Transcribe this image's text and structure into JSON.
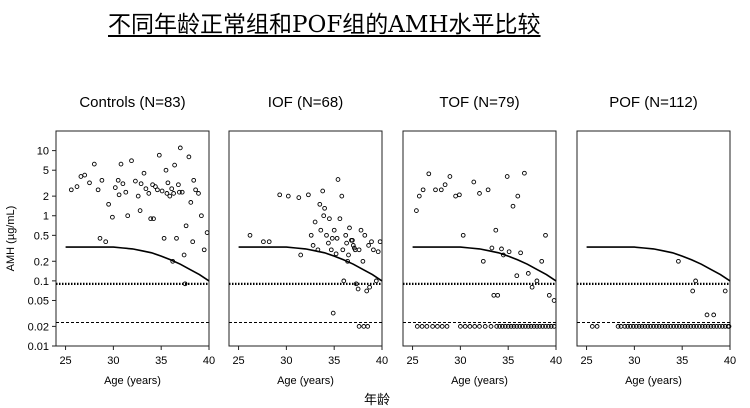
{
  "title": "不同年龄正常组和POF组的AMH水平比较",
  "footer_label": "年龄",
  "chart_data": {
    "type": "scatter",
    "ylabel": "AMH (µg/mL)",
    "xlabel": "Age (years)",
    "x_range": [
      24,
      40
    ],
    "y_range": [
      0.01,
      20
    ],
    "y_scale": "log",
    "x_ticks": [
      25,
      30,
      35,
      40
    ],
    "y_ticks": [
      {
        "value": 10,
        "label": "10"
      },
      {
        "value": 5,
        "label": "5"
      },
      {
        "value": 2,
        "label": "2"
      },
      {
        "value": 1,
        "label": "1"
      },
      {
        "value": 0.5,
        "label": "0.5"
      },
      {
        "value": 0.2,
        "label": "0.2"
      },
      {
        "value": 0.1,
        "label": "0.1"
      },
      {
        "value": 0.05,
        "label": "0.05"
      },
      {
        "value": 0.02,
        "label": "0.02"
      },
      {
        "value": 0.01,
        "label": "0.01"
      }
    ],
    "reference_lines": [
      {
        "y": 0.09,
        "style": "dotted-heavy"
      },
      {
        "y": 0.023,
        "style": "dashed"
      }
    ],
    "curve": [
      [
        25,
        0.33
      ],
      [
        30,
        0.33
      ],
      [
        31,
        0.32
      ],
      [
        32,
        0.31
      ],
      [
        33,
        0.29
      ],
      [
        34,
        0.27
      ],
      [
        35,
        0.24
      ],
      [
        36,
        0.21
      ],
      [
        37,
        0.18
      ],
      [
        38,
        0.15
      ],
      [
        39,
        0.125
      ],
      [
        40,
        0.1
      ]
    ],
    "panels": [
      {
        "title": "Controls (N=83)",
        "points": [
          [
            25.6,
            2.5
          ],
          [
            26.2,
            2.8
          ],
          [
            26.6,
            4.0
          ],
          [
            27.0,
            4.2
          ],
          [
            27.5,
            3.2
          ],
          [
            28.0,
            6.2
          ],
          [
            28.4,
            2.5
          ],
          [
            28.8,
            3.5
          ],
          [
            29.2,
            0.4
          ],
          [
            29.5,
            1.5
          ],
          [
            29.9,
            0.95
          ],
          [
            30.2,
            2.7
          ],
          [
            30.5,
            3.5
          ],
          [
            30.8,
            6.2
          ],
          [
            31.0,
            3.1
          ],
          [
            31.3,
            2.3
          ],
          [
            31.5,
            1.0
          ],
          [
            31.9,
            7.0
          ],
          [
            32.3,
            3.4
          ],
          [
            32.6,
            2.0
          ],
          [
            32.9,
            3.1
          ],
          [
            33.2,
            4.5
          ],
          [
            33.4,
            2.6
          ],
          [
            33.7,
            2.2
          ],
          [
            33.9,
            0.9
          ],
          [
            34.1,
            3.0
          ],
          [
            34.4,
            2.8
          ],
          [
            34.6,
            2.5
          ],
          [
            34.8,
            8.5
          ],
          [
            35.1,
            2.4
          ],
          [
            35.3,
            0.45
          ],
          [
            35.5,
            5.0
          ],
          [
            35.7,
            3.2
          ],
          [
            35.9,
            2.0
          ],
          [
            36.1,
            2.6
          ],
          [
            36.3,
            2.2
          ],
          [
            36.4,
            6.0
          ],
          [
            36.6,
            0.45
          ],
          [
            36.8,
            3.0
          ],
          [
            37.0,
            11.0
          ],
          [
            37.2,
            2.3
          ],
          [
            37.4,
            0.25
          ],
          [
            37.6,
            0.7
          ],
          [
            37.9,
            8.0
          ],
          [
            38.1,
            1.6
          ],
          [
            38.3,
            0.4
          ],
          [
            38.6,
            2.5
          ],
          [
            38.9,
            2.2
          ],
          [
            39.2,
            1.0
          ],
          [
            39.5,
            0.3
          ],
          [
            39.8,
            0.55
          ],
          [
            36.9,
            2.3
          ],
          [
            37.5,
            0.09
          ],
          [
            35.6,
            2.2
          ],
          [
            34.2,
            0.9
          ],
          [
            36.2,
            0.2
          ],
          [
            32.8,
            1.2
          ],
          [
            28.6,
            0.45
          ],
          [
            38.4,
            3.5
          ],
          [
            30.6,
            2.1
          ]
        ]
      },
      {
        "title": "IOF (N=68)",
        "points": [
          [
            26.2,
            0.5
          ],
          [
            27.6,
            0.4
          ],
          [
            28.2,
            0.4
          ],
          [
            29.3,
            2.1
          ],
          [
            30.2,
            2.0
          ],
          [
            31.3,
            1.9
          ],
          [
            31.5,
            0.25
          ],
          [
            32.3,
            2.1
          ],
          [
            32.6,
            0.5
          ],
          [
            32.8,
            0.35
          ],
          [
            33.0,
            0.8
          ],
          [
            33.3,
            0.3
          ],
          [
            33.5,
            1.5
          ],
          [
            33.6,
            0.6
          ],
          [
            33.8,
            2.4
          ],
          [
            34.0,
            1.3
          ],
          [
            34.2,
            0.5
          ],
          [
            34.4,
            0.38
          ],
          [
            34.5,
            0.9
          ],
          [
            34.7,
            0.3
          ],
          [
            34.9,
            0.032
          ],
          [
            35.0,
            0.6
          ],
          [
            35.2,
            0.26
          ],
          [
            35.4,
            3.6
          ],
          [
            35.6,
            0.9
          ],
          [
            35.8,
            2.0
          ],
          [
            35.9,
            0.3
          ],
          [
            36.0,
            0.1
          ],
          [
            36.2,
            0.5
          ],
          [
            36.3,
            0.38
          ],
          [
            36.5,
            0.25
          ],
          [
            36.6,
            0.65
          ],
          [
            36.8,
            0.42
          ],
          [
            37.0,
            0.35
          ],
          [
            37.2,
            0.3
          ],
          [
            37.3,
            0.09
          ],
          [
            37.5,
            0.075
          ],
          [
            37.6,
            0.3
          ],
          [
            37.8,
            0.6
          ],
          [
            38.0,
            0.2
          ],
          [
            38.2,
            0.5
          ],
          [
            38.4,
            0.07
          ],
          [
            38.6,
            0.35
          ],
          [
            38.9,
            0.4
          ],
          [
            39.1,
            0.3
          ],
          [
            39.4,
            0.1
          ],
          [
            39.6,
            0.28
          ],
          [
            39.8,
            0.4
          ],
          [
            35.3,
            0.45
          ],
          [
            36.9,
            0.42
          ],
          [
            37.1,
            0.32
          ],
          [
            34.8,
            0.45
          ],
          [
            33.9,
            1.0
          ],
          [
            38.7,
            0.08
          ],
          [
            37.6,
            0.02
          ],
          [
            38.1,
            0.02
          ],
          [
            38.5,
            0.02
          ],
          [
            36.4,
            0.2
          ]
        ]
      },
      {
        "title": "TOF (N=79)",
        "points": [
          [
            25.4,
            1.2
          ],
          [
            25.7,
            2.0
          ],
          [
            26.1,
            2.5
          ],
          [
            26.7,
            4.4
          ],
          [
            27.4,
            2.5
          ],
          [
            28.0,
            2.5
          ],
          [
            28.4,
            3.0
          ],
          [
            28.9,
            4.0
          ],
          [
            29.5,
            2.0
          ],
          [
            29.9,
            2.1
          ],
          [
            30.3,
            0.5
          ],
          [
            31.4,
            3.3
          ],
          [
            32.0,
            2.2
          ],
          [
            32.4,
            0.2
          ],
          [
            32.9,
            2.5
          ],
          [
            33.3,
            0.32
          ],
          [
            33.7,
            0.6
          ],
          [
            33.9,
            0.06
          ],
          [
            34.3,
            0.31
          ],
          [
            34.5,
            0.25
          ],
          [
            34.9,
            4.0
          ],
          [
            35.1,
            0.28
          ],
          [
            35.5,
            1.4
          ],
          [
            35.9,
            0.12
          ],
          [
            36.0,
            2.0
          ],
          [
            36.3,
            0.27
          ],
          [
            36.7,
            4.5
          ],
          [
            37.1,
            0.13
          ],
          [
            37.5,
            0.08
          ],
          [
            38.0,
            0.1
          ],
          [
            38.5,
            0.2
          ],
          [
            38.9,
            0.5
          ],
          [
            39.3,
            0.06
          ],
          [
            39.8,
            0.05
          ],
          [
            25.5,
            0.02
          ],
          [
            26.0,
            0.02
          ],
          [
            26.5,
            0.02
          ],
          [
            27.1,
            0.02
          ],
          [
            27.6,
            0.02
          ],
          [
            28.1,
            0.02
          ],
          [
            28.6,
            0.02
          ],
          [
            30.0,
            0.02
          ],
          [
            30.5,
            0.02
          ],
          [
            31.0,
            0.02
          ],
          [
            31.5,
            0.02
          ],
          [
            32.0,
            0.02
          ],
          [
            32.6,
            0.02
          ],
          [
            33.2,
            0.02
          ],
          [
            33.8,
            0.02
          ],
          [
            34.1,
            0.02
          ],
          [
            34.4,
            0.02
          ],
          [
            34.7,
            0.02
          ],
          [
            35.0,
            0.02
          ],
          [
            35.3,
            0.02
          ],
          [
            35.6,
            0.02
          ],
          [
            35.9,
            0.02
          ],
          [
            36.2,
            0.02
          ],
          [
            36.5,
            0.02
          ],
          [
            36.8,
            0.02
          ],
          [
            37.1,
            0.02
          ],
          [
            37.4,
            0.02
          ],
          [
            37.7,
            0.02
          ],
          [
            38.0,
            0.02
          ],
          [
            38.3,
            0.02
          ],
          [
            38.6,
            0.02
          ],
          [
            38.9,
            0.02
          ],
          [
            39.2,
            0.02
          ],
          [
            39.5,
            0.02
          ],
          [
            39.8,
            0.02
          ],
          [
            33.5,
            0.06
          ]
        ]
      },
      {
        "title": "POF (N=112)",
        "points": [
          [
            34.6,
            0.2
          ],
          [
            36.1,
            0.07
          ],
          [
            38.3,
            0.03
          ],
          [
            39.5,
            0.07
          ],
          [
            36.4,
            0.1
          ],
          [
            37.6,
            0.03
          ],
          [
            25.6,
            0.02
          ],
          [
            26.1,
            0.02
          ],
          [
            28.3,
            0.02
          ],
          [
            28.6,
            0.02
          ],
          [
            29.0,
            0.02
          ],
          [
            29.3,
            0.02
          ],
          [
            29.6,
            0.02
          ],
          [
            29.9,
            0.02
          ],
          [
            30.2,
            0.02
          ],
          [
            30.5,
            0.02
          ],
          [
            30.8,
            0.02
          ],
          [
            31.1,
            0.02
          ],
          [
            31.4,
            0.02
          ],
          [
            31.7,
            0.02
          ],
          [
            32.0,
            0.02
          ],
          [
            32.3,
            0.02
          ],
          [
            32.6,
            0.02
          ],
          [
            32.9,
            0.02
          ],
          [
            33.2,
            0.02
          ],
          [
            33.5,
            0.02
          ],
          [
            33.8,
            0.02
          ],
          [
            34.1,
            0.02
          ],
          [
            34.4,
            0.02
          ],
          [
            34.7,
            0.02
          ],
          [
            35.0,
            0.02
          ],
          [
            35.3,
            0.02
          ],
          [
            35.6,
            0.02
          ],
          [
            35.9,
            0.02
          ],
          [
            36.2,
            0.02
          ],
          [
            36.5,
            0.02
          ],
          [
            36.8,
            0.02
          ],
          [
            37.1,
            0.02
          ],
          [
            37.4,
            0.02
          ],
          [
            37.7,
            0.02
          ],
          [
            38.0,
            0.02
          ],
          [
            38.3,
            0.02
          ],
          [
            38.6,
            0.02
          ],
          [
            38.9,
            0.02
          ],
          [
            39.2,
            0.02
          ],
          [
            39.5,
            0.02
          ],
          [
            39.8,
            0.02
          ],
          [
            39.9,
            0.02
          ]
        ]
      }
    ]
  }
}
